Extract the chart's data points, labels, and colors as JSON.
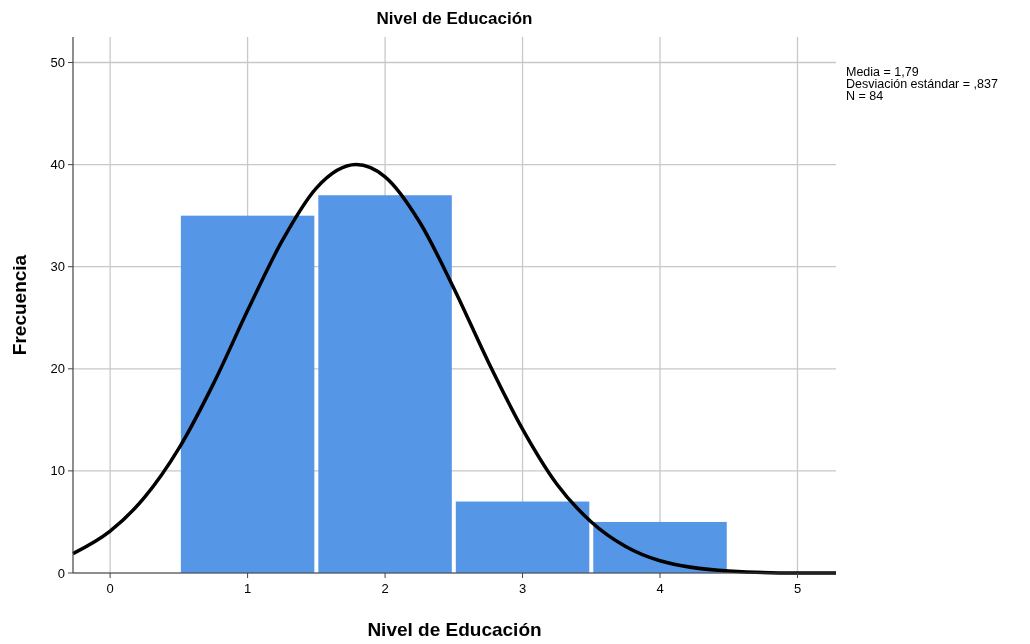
{
  "chart_data": {
    "type": "histogram",
    "title": "Nivel de Educación",
    "xlabel": "Nivel de Educación",
    "ylabel": "Frecuencia",
    "bins": [
      0.5,
      1.5,
      2.5,
      3.5,
      4.5
    ],
    "values": [
      35,
      37,
      7,
      5
    ],
    "color": "#5596e6",
    "series": [
      {
        "type": "line",
        "color": "#000000",
        "x": [
          -0.27,
          0,
          0.25,
          0.5,
          0.75,
          1,
          1.25,
          1.5,
          1.79,
          2,
          2.25,
          2.5,
          2.75,
          3,
          3.25,
          3.5,
          3.75,
          4,
          4.5,
          5,
          5.28
        ],
        "values": [
          1.9,
          4.1,
          7.4,
          12.2,
          18.5,
          25.7,
          32.5,
          37.7,
          40,
          38.8,
          34.4,
          27.9,
          20.7,
          14.1,
          8.7,
          5,
          2.6,
          1.2,
          0.2,
          0,
          0
        ]
      }
    ],
    "xlim": [
      -0.27,
      5.28
    ],
    "xticks": [
      0,
      1,
      2,
      3,
      4,
      5
    ],
    "ylim": [
      0,
      52.5
    ],
    "yticks": [
      0,
      10,
      20,
      30,
      40,
      50
    ],
    "grid": true,
    "annotations": [
      "Media = 1,79",
      "Desviación estándar = ,837",
      "N = 84"
    ]
  }
}
